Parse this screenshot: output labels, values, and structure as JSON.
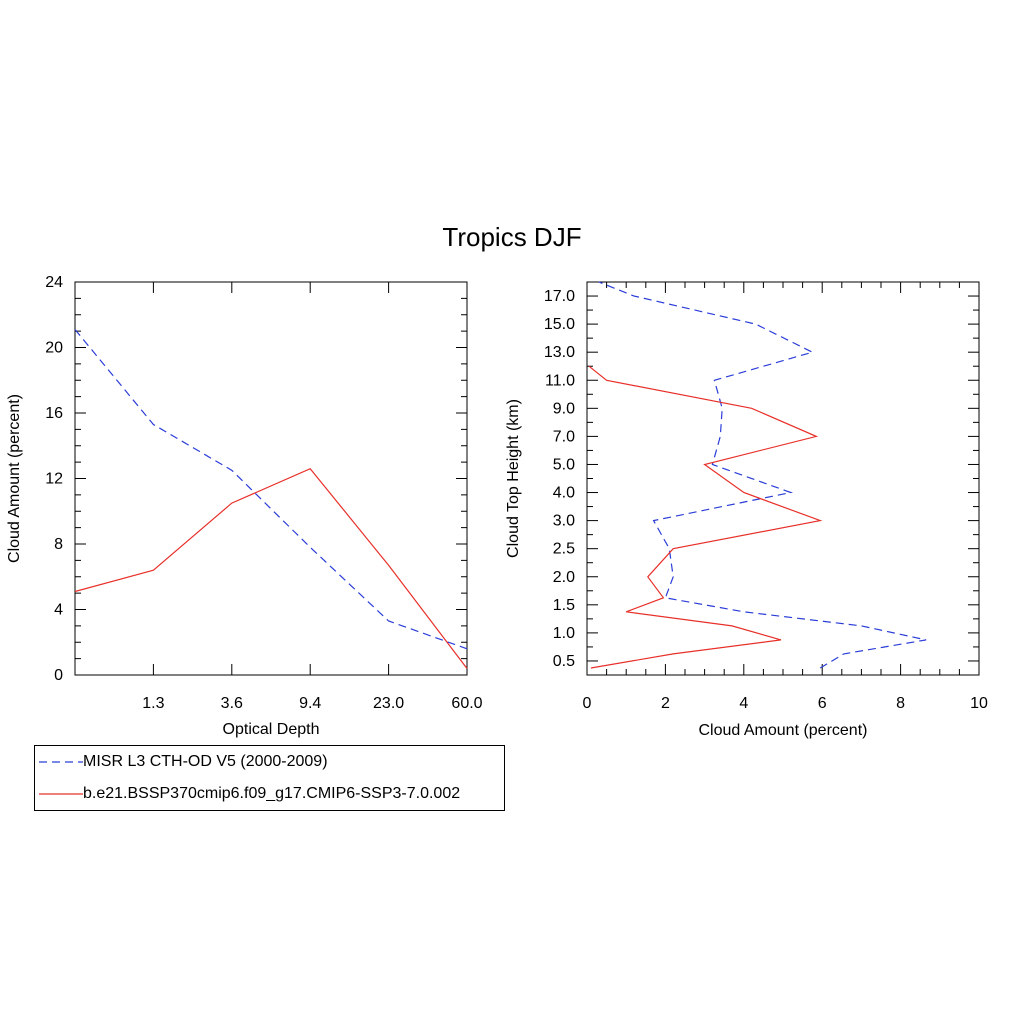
{
  "page": {
    "title": "Tropics DJF"
  },
  "colors": {
    "obs": "#2a3dd8",
    "model": "#e8302a"
  },
  "legend": {
    "obs_label": "MISR L3 CTH-OD V5 (2000-2009)",
    "model_label": "b.e21.BSSP370cmip6.f09_g17.CMIP6-SSP3-7.0.002"
  },
  "chart_data": [
    {
      "type": "line",
      "xlabel": "Optical Depth",
      "ylabel": "Cloud Amount (percent)",
      "ylim": [
        0,
        24
      ],
      "yticks": [
        0,
        4,
        8,
        12,
        16,
        20,
        24
      ],
      "xtick_labels": [
        "1.3",
        "3.6",
        "9.4",
        "23.0",
        "60.0"
      ],
      "grid": false,
      "x_bins": [
        0,
        1,
        2,
        3,
        4,
        5
      ],
      "series": [
        {
          "name": "MISR L3 CTH-OD V5 (2000-2009)",
          "style": "dashed",
          "values": [
            21.1,
            15.3,
            12.5,
            7.8,
            3.3,
            1.6
          ]
        },
        {
          "name": "b.e21.BSSP370cmip6.f09_g17.CMIP6-SSP3-7.0.002",
          "style": "solid",
          "values": [
            5.1,
            6.4,
            10.5,
            12.6,
            6.7,
            0.4
          ]
        }
      ]
    },
    {
      "type": "line",
      "xlabel": "Cloud Amount (percent)",
      "ylabel": "Cloud Top Height (km)",
      "xlim": [
        0,
        10
      ],
      "xticks": [
        0,
        2,
        4,
        6,
        8,
        10
      ],
      "ytick_labels": [
        "0.5",
        "1.0",
        "1.5",
        "2.0",
        "2.5",
        "3.0",
        "4.0",
        "5.0",
        "7.0",
        "9.0",
        "11.0",
        "13.0",
        "15.0",
        "17.0"
      ],
      "grid": false,
      "series": [
        {
          "name": "MISR L3 CTH-OD V5 (2000-2009)",
          "style": "dashed",
          "points": [
            [
              5.95,
              0.25
            ],
            [
              6.55,
              0.75
            ],
            [
              8.65,
              1.25
            ],
            [
              7.0,
              1.75
            ],
            [
              4.0,
              2.25
            ],
            [
              2.0,
              2.75
            ],
            [
              2.2,
              3.5
            ],
            [
              2.1,
              4.5
            ],
            [
              1.7,
              5.5
            ],
            [
              5.2,
              6.5
            ],
            [
              3.2,
              7.5
            ],
            [
              3.4,
              8.5
            ],
            [
              3.45,
              9.5
            ],
            [
              3.25,
              10.5
            ],
            [
              5.75,
              11.5
            ],
            [
              4.3,
              12.5
            ],
            [
              1.2,
              13.5
            ],
            [
              0.3,
              14.0
            ]
          ]
        },
        {
          "name": "b.e21.BSSP370cmip6.f09_g17.CMIP6-SSP3-7.0.002",
          "style": "solid",
          "points": [
            [
              0.1,
              0.25
            ],
            [
              2.2,
              0.75
            ],
            [
              4.95,
              1.25
            ],
            [
              3.7,
              1.75
            ],
            [
              1.0,
              2.25
            ],
            [
              1.95,
              2.75
            ],
            [
              1.55,
              3.5
            ],
            [
              2.2,
              4.5
            ],
            [
              5.95,
              5.5
            ],
            [
              4.0,
              6.5
            ],
            [
              3.0,
              7.5
            ],
            [
              5.85,
              8.5
            ],
            [
              4.2,
              9.5
            ],
            [
              0.5,
              10.5
            ],
            [
              0.05,
              11.0
            ]
          ]
        }
      ]
    }
  ]
}
